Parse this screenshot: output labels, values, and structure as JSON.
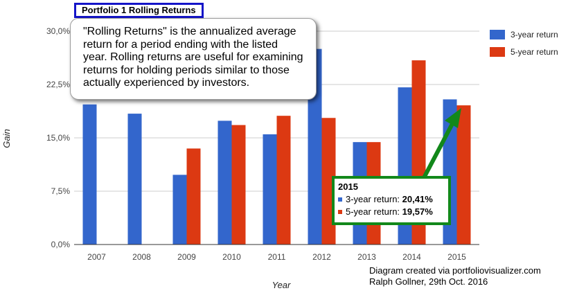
{
  "title": "Portfolio 1 Rolling Returns",
  "callout_text": "\"Rolling Returns\" is the annualized average return for a period ending with the listed year. Rolling returns are useful for examining returns for holding periods similar to those actually experienced by investors.",
  "tooltip": {
    "year": "2015",
    "rows": [
      {
        "label": "3-year return:",
        "value": "20,41%"
      },
      {
        "label": "5-year return:",
        "value": "19,57%"
      }
    ]
  },
  "credit_line1": "Diagram created via portfoliovisualizer.com",
  "credit_line2": "Ralph Gollner, 29th Oct. 2016",
  "colors": {
    "series_3y": "#3366cc",
    "series_5y": "#dc3912",
    "tooltip_border": "#12881a",
    "arrow": "#12881a",
    "title_border": "#1414c8"
  },
  "chart_data": {
    "type": "bar",
    "title": "Portfolio 1 Rolling Returns",
    "xlabel": "Year",
    "ylabel": "Gain",
    "categories": [
      "2007",
      "2008",
      "2009",
      "2010",
      "2011",
      "2012",
      "2013",
      "2014",
      "2015"
    ],
    "series": [
      {
        "name": "3-year return",
        "values": [
          19.7,
          18.4,
          9.8,
          17.4,
          15.5,
          27.5,
          14.4,
          22.1,
          20.41
        ]
      },
      {
        "name": "5-year return",
        "values": [
          null,
          null,
          13.5,
          16.8,
          18.1,
          17.8,
          14.4,
          25.9,
          19.57
        ]
      }
    ],
    "ylim": [
      0,
      30
    ],
    "yticks": [
      "0,0%",
      "7,5%",
      "15,0%",
      "22,5%",
      "30,0%"
    ],
    "ytick_values": [
      0,
      7.5,
      15,
      22.5,
      30
    ],
    "grid": true,
    "legend_position": "right"
  }
}
